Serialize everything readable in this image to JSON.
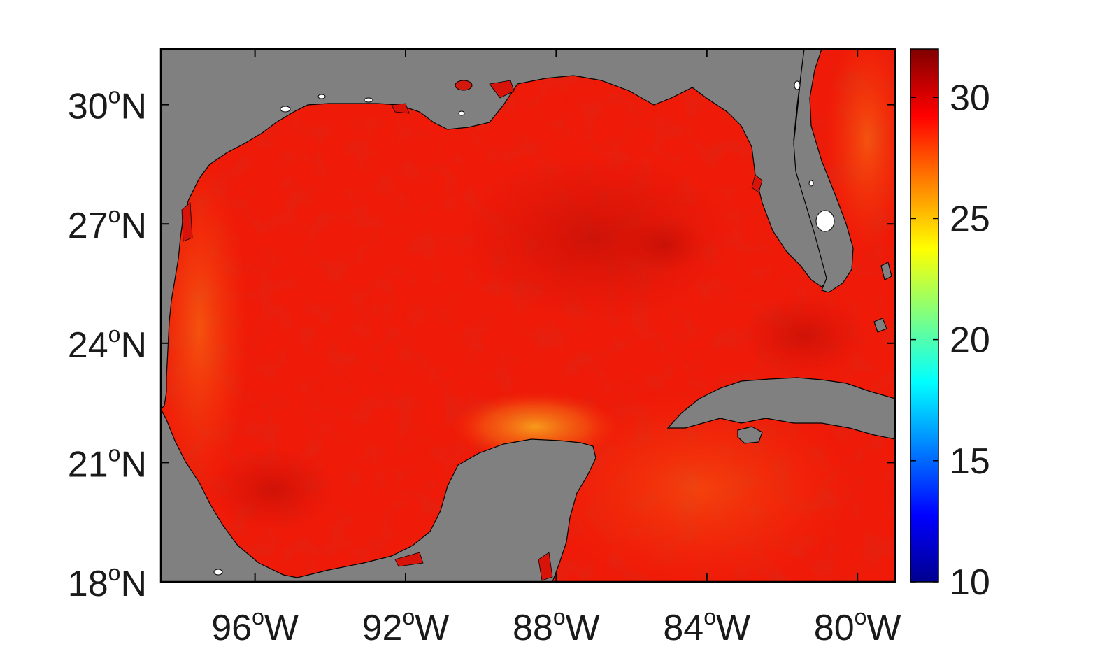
{
  "map": {
    "lon_range": [
      -98.5,
      -79
    ],
    "lat_range": [
      18,
      31.4
    ],
    "x_ticks": [
      {
        "value": -96,
        "num": "96",
        "deg": "o",
        "hemi": "W"
      },
      {
        "value": -92,
        "num": "92",
        "deg": "o",
        "hemi": "W"
      },
      {
        "value": -88,
        "num": "88",
        "deg": "o",
        "hemi": "W"
      },
      {
        "value": -84,
        "num": "84",
        "deg": "o",
        "hemi": "W"
      },
      {
        "value": -80,
        "num": "80",
        "deg": "o",
        "hemi": "W"
      }
    ],
    "y_ticks": [
      {
        "value": 30,
        "num": "30",
        "deg": "o",
        "hemi": "N"
      },
      {
        "value": 27,
        "num": "27",
        "deg": "o",
        "hemi": "N"
      },
      {
        "value": 24,
        "num": "24",
        "deg": "o",
        "hemi": "N"
      },
      {
        "value": 21,
        "num": "21",
        "deg": "o",
        "hemi": "N"
      },
      {
        "value": 18,
        "num": "18",
        "deg": "o",
        "hemi": "N"
      }
    ],
    "land_color": "#808080",
    "ocean_base_color": "#f01a08",
    "colormap": "jet"
  },
  "colorbar": {
    "range": [
      10,
      32
    ],
    "ticks": [
      {
        "value": 30,
        "label": "30"
      },
      {
        "value": 25,
        "label": "25"
      },
      {
        "value": 20,
        "label": "20"
      },
      {
        "value": 15,
        "label": "15"
      },
      {
        "value": 10,
        "label": "10"
      }
    ]
  }
}
